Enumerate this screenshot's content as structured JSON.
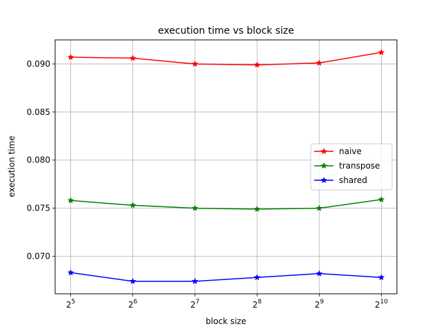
{
  "chart_data": {
    "type": "line",
    "title": "execution time vs block size",
    "xlabel": "block size",
    "ylabel": "execution time",
    "x_scale": "log2",
    "x": [
      32,
      64,
      128,
      256,
      512,
      1024
    ],
    "x_ticks": [
      {
        "base": "2",
        "exp": "5"
      },
      {
        "base": "2",
        "exp": "6"
      },
      {
        "base": "2",
        "exp": "7"
      },
      {
        "base": "2",
        "exp": "8"
      },
      {
        "base": "2",
        "exp": "9"
      },
      {
        "base": "2",
        "exp": "10"
      }
    ],
    "ylim": [
      0.0661,
      0.0925
    ],
    "y_ticks": [
      "0.070",
      "0.075",
      "0.080",
      "0.085",
      "0.090"
    ],
    "grid": true,
    "legend": "center-right",
    "marker": "star",
    "series": [
      {
        "name": "naive",
        "color": "#ff0000",
        "values": [
          0.0907,
          0.0906,
          0.09,
          0.0899,
          0.0901,
          0.0912
        ]
      },
      {
        "name": "transpose",
        "color": "#008000",
        "values": [
          0.0758,
          0.0753,
          0.075,
          0.0749,
          0.075,
          0.0759
        ]
      },
      {
        "name": "shared",
        "color": "#0000ff",
        "values": [
          0.0683,
          0.0674,
          0.0674,
          0.0678,
          0.0682,
          0.0678
        ]
      }
    ]
  }
}
